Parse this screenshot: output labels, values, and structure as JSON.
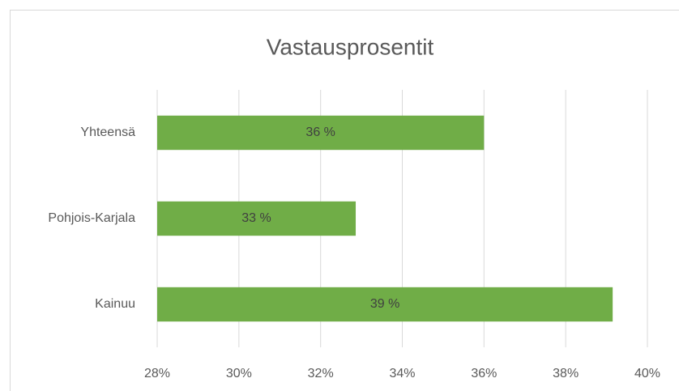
{
  "chart_data": {
    "type": "bar",
    "orientation": "horizontal",
    "title": "Vastausprosentit",
    "categories": [
      "Yhteensä",
      "Pohjois-Karjala",
      "Kainuu"
    ],
    "values": [
      36,
      32.86,
      39.15
    ],
    "value_labels": [
      "36 %",
      "33 %",
      "39 %"
    ],
    "color": "#70ad47",
    "xlim": [
      28,
      40
    ],
    "xticks": [
      {
        "value": 28,
        "label": "28%"
      },
      {
        "value": 30,
        "label": "30%"
      },
      {
        "value": 32,
        "label": "32%"
      },
      {
        "value": 34,
        "label": "34%"
      },
      {
        "value": 36,
        "label": "36%"
      },
      {
        "value": 38,
        "label": "38%"
      },
      {
        "value": 40,
        "label": "40%"
      }
    ],
    "grid": true
  }
}
